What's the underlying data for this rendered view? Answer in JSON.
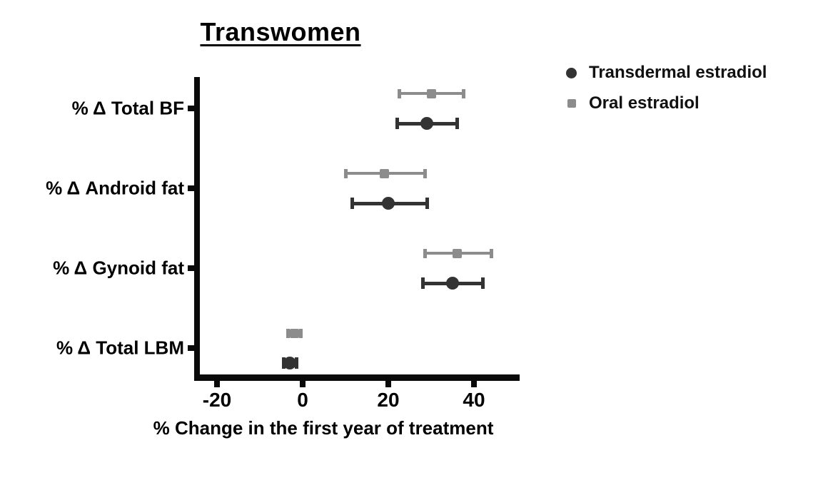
{
  "title": "Transwomen",
  "xlabel": "% Change in the first year of treatment",
  "legend": {
    "position": "top-right",
    "items": [
      {
        "label": "Transdermal estradiol",
        "marker": "circle-icon",
        "color": "#333333"
      },
      {
        "label": "Oral estradiol",
        "marker": "square-icon",
        "color": "#8c8c8c"
      }
    ]
  },
  "chart_data": {
    "type": "scatter",
    "subtype": "horizontal dot plot with error bars (mean and confidence interval)",
    "title": "Transwomen",
    "xlabel": "% Change in the first year of treatment",
    "categories": [
      "% Δ Total BF",
      "% Δ Android fat",
      "% Δ Gynoid fat",
      "% Δ Total LBM"
    ],
    "x_ticks": [
      -20,
      0,
      20,
      40
    ],
    "xlim": [
      -25,
      50
    ],
    "grid": "off",
    "legend_position": "top-right",
    "series": [
      {
        "name": "Transdermal estradiol",
        "marker": "circle",
        "color": "#333333",
        "values": [
          {
            "category": "% Δ Total BF",
            "mean": 29,
            "ci_low": 22,
            "ci_high": 36
          },
          {
            "category": "% Δ Android fat",
            "mean": 20,
            "ci_low": 11.5,
            "ci_high": 29
          },
          {
            "category": "% Δ Gynoid fat",
            "mean": 35,
            "ci_low": 28,
            "ci_high": 42
          },
          {
            "category": "% Δ Total LBM",
            "mean": -3,
            "ci_low": -4.5,
            "ci_high": -1.5
          }
        ]
      },
      {
        "name": "Oral estradiol",
        "marker": "square",
        "color": "#8c8c8c",
        "values": [
          {
            "category": "% Δ Total BF",
            "mean": 30,
            "ci_low": 22.5,
            "ci_high": 37.5
          },
          {
            "category": "% Δ Android fat",
            "mean": 19,
            "ci_low": 10,
            "ci_high": 28.5
          },
          {
            "category": "% Δ Gynoid fat",
            "mean": 36,
            "ci_low": 28.5,
            "ci_high": 44
          },
          {
            "category": "% Δ Total LBM",
            "mean": -2,
            "ci_low": -3.5,
            "ci_high": -0.5
          }
        ]
      }
    ]
  }
}
